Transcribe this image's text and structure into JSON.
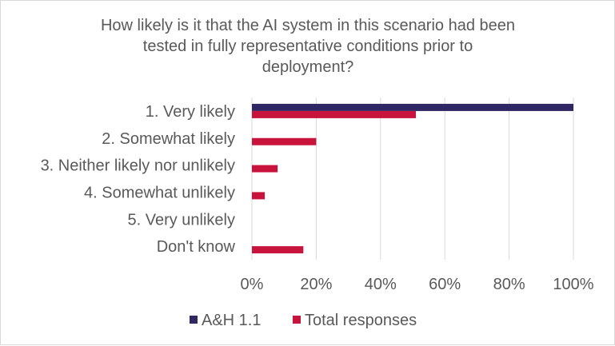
{
  "chart_data": {
    "type": "bar",
    "orientation": "horizontal",
    "title": "How likely is it that the AI system in this scenario had been tested in fully representative conditions prior to deployment?",
    "title_lines": [
      "How likely is it that the AI system in this scenario had been",
      "tested in fully representative conditions prior to",
      "deployment?"
    ],
    "categories": [
      "1. Very likely",
      "2. Somewhat likely",
      "3. Neither likely nor unlikely",
      "4. Somewhat unlikely",
      "5. Very unlikely",
      "Don't know"
    ],
    "series": [
      {
        "name": "A&H 1.1",
        "color": "#2e2764",
        "values": [
          100,
          0,
          0,
          0,
          0,
          0
        ]
      },
      {
        "name": "Total responses",
        "color": "#c8143c",
        "values": [
          51,
          20,
          8,
          4,
          0,
          16
        ]
      }
    ],
    "xlim": [
      0,
      100
    ],
    "xticks": [
      "0%",
      "20%",
      "40%",
      "60%",
      "80%",
      "100%"
    ],
    "grid": true,
    "legend_position": "bottom"
  }
}
